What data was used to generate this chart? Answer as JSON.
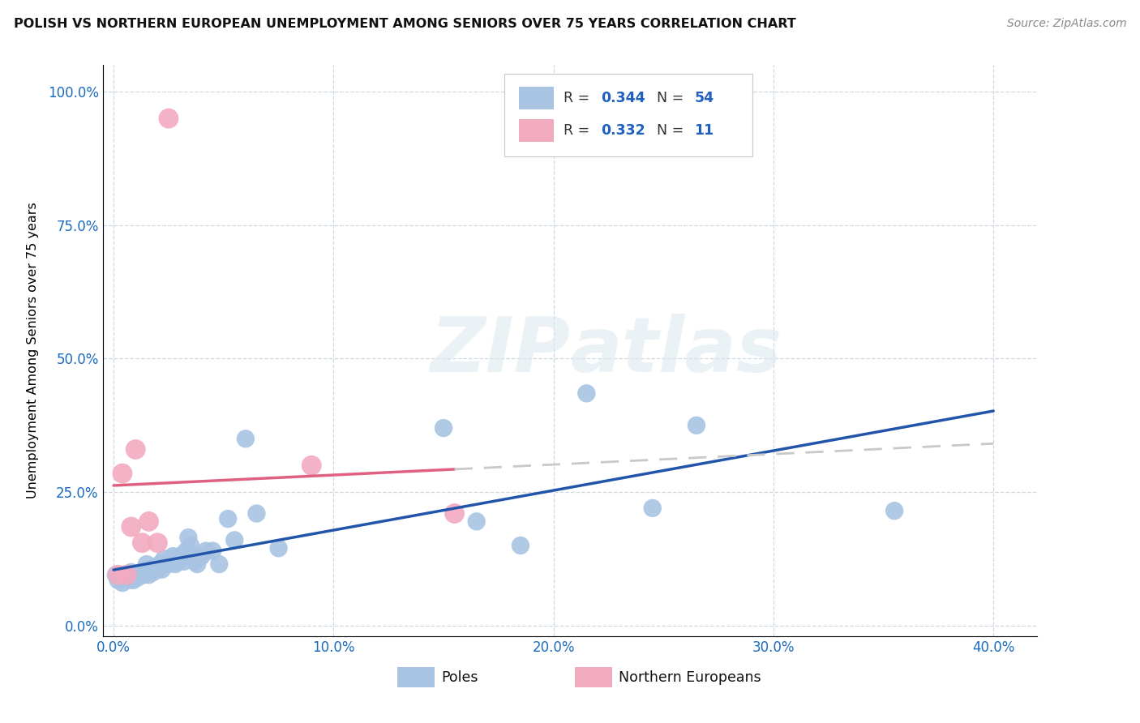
{
  "title": "POLISH VS NORTHERN EUROPEAN UNEMPLOYMENT AMONG SENIORS OVER 75 YEARS CORRELATION CHART",
  "source": "Source: ZipAtlas.com",
  "ylabel": "Unemployment Among Seniors over 75 years",
  "xlabel_ticks": [
    "0.0%",
    "10.0%",
    "20.0%",
    "30.0%",
    "40.0%"
  ],
  "xlabel_tick_vals": [
    0.0,
    0.1,
    0.2,
    0.3,
    0.4
  ],
  "ylabel_ticks": [
    "0.0%",
    "25.0%",
    "50.0%",
    "75.0%",
    "100.0%"
  ],
  "ylabel_tick_vals": [
    0.0,
    0.25,
    0.5,
    0.75,
    1.0
  ],
  "xlim": [
    -0.005,
    0.42
  ],
  "ylim": [
    -0.02,
    1.05
  ],
  "poles_R": 0.344,
  "poles_N": 54,
  "northern_R": 0.332,
  "northern_N": 11,
  "poles_color": "#a8c4e2",
  "northern_color": "#f2aabf",
  "poles_line_color": "#2255aa",
  "northern_line_color": "#e06080",
  "northern_dash_color": "#c8c8c8",
  "trend_text_color": "#2060c0",
  "watermark": "ZIPAtlas",
  "poles_x": [
    0.001,
    0.002,
    0.003,
    0.004,
    0.005,
    0.006,
    0.007,
    0.008,
    0.009,
    0.01,
    0.011,
    0.012,
    0.013,
    0.014,
    0.015,
    0.016,
    0.017,
    0.018,
    0.019,
    0.02,
    0.021,
    0.022,
    0.023,
    0.024,
    0.025,
    0.026,
    0.027,
    0.028,
    0.029,
    0.03,
    0.031,
    0.032,
    0.033,
    0.034,
    0.035,
    0.036,
    0.037,
    0.038,
    0.04,
    0.042,
    0.045,
    0.048,
    0.052,
    0.055,
    0.06,
    0.065,
    0.075,
    0.15,
    0.165,
    0.185,
    0.215,
    0.245,
    0.265,
    0.355
  ],
  "poles_y": [
    0.095,
    0.085,
    0.09,
    0.08,
    0.095,
    0.09,
    0.085,
    0.1,
    0.085,
    0.095,
    0.09,
    0.095,
    0.1,
    0.095,
    0.115,
    0.095,
    0.105,
    0.1,
    0.11,
    0.105,
    0.115,
    0.105,
    0.125,
    0.115,
    0.115,
    0.125,
    0.13,
    0.115,
    0.12,
    0.13,
    0.125,
    0.12,
    0.14,
    0.165,
    0.15,
    0.13,
    0.12,
    0.115,
    0.13,
    0.14,
    0.14,
    0.115,
    0.2,
    0.16,
    0.35,
    0.21,
    0.145,
    0.37,
    0.195,
    0.15,
    0.435,
    0.22,
    0.375,
    0.215
  ],
  "northern_x": [
    0.002,
    0.004,
    0.006,
    0.008,
    0.01,
    0.013,
    0.016,
    0.02,
    0.025,
    0.09,
    0.155
  ],
  "northern_y": [
    0.095,
    0.285,
    0.095,
    0.185,
    0.33,
    0.155,
    0.195,
    0.155,
    0.95,
    0.3,
    0.21
  ]
}
